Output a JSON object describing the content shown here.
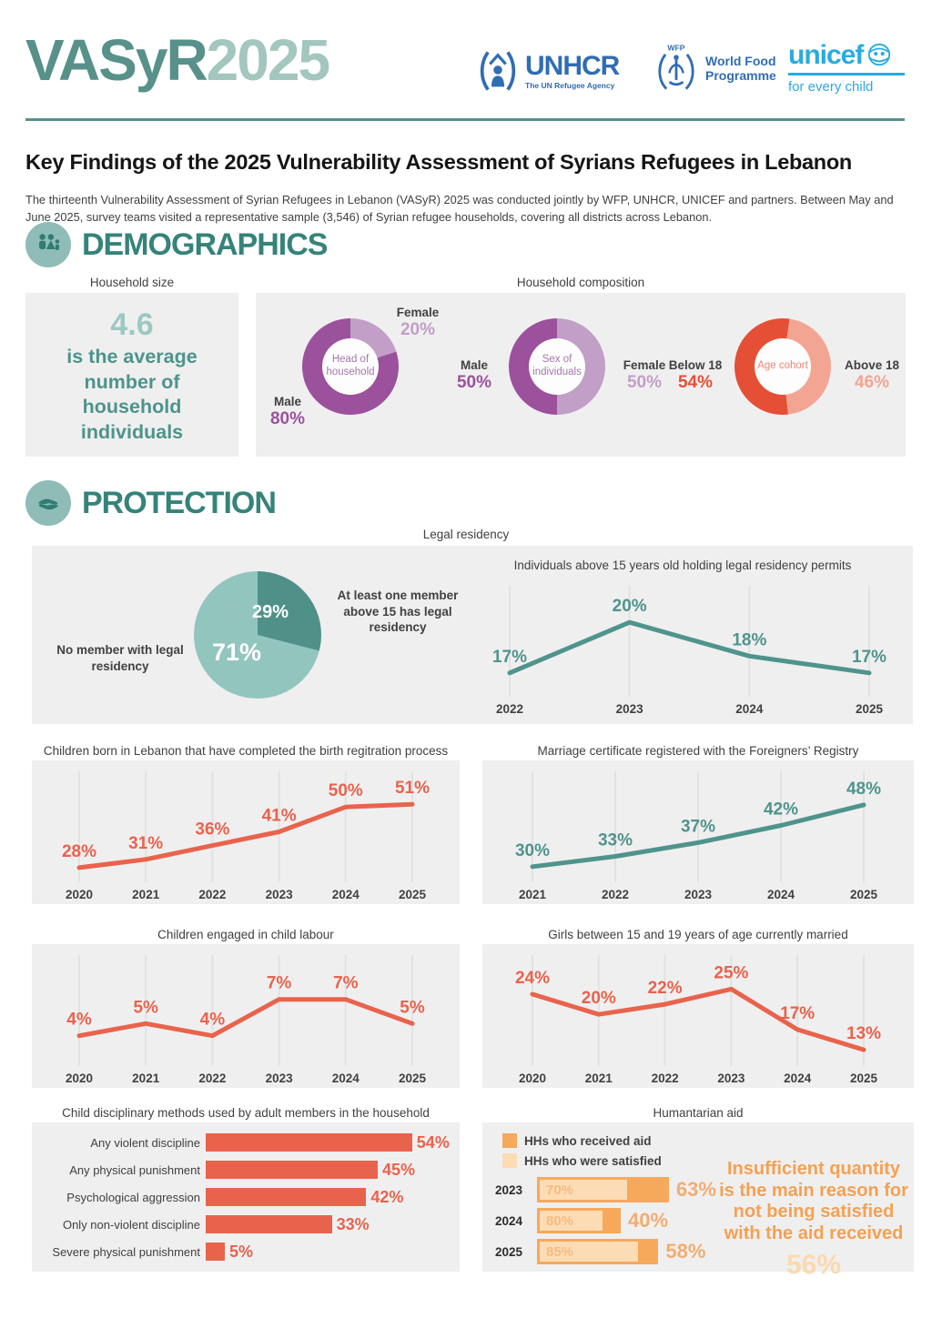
{
  "header": {
    "wordmark_primary": "VASyR",
    "wordmark_secondary": "2025",
    "logos": {
      "unhcr_name": "UNHCR",
      "unhcr_tagline": "The UN Refugee Agency",
      "wfp_acronym": "WFP",
      "wfp_name_line1": "World Food",
      "wfp_name_line2": "Programme",
      "unicef_name": "unicef",
      "unicef_tagline": "for every child"
    },
    "title": "Key Findings of the 2025 Vulnerability Assessment of Syrians Refugees in Lebanon",
    "intro": "The thirteenth Vulnerability Assessment of Syrian Refugees in Lebanon (VASyR) 2025 was conducted jointly by WFP, UNHCR, UNICEF and partners. Between May and June 2025, survey teams visited a representative sample (3,546) of Syrian refugee households, covering all districts across Lebanon."
  },
  "sections": {
    "demographics": "DEMOGRAPHICS",
    "protection": "PROTECTION"
  },
  "labels": {
    "household_size": "Household size",
    "household_composition": "Household composition",
    "legal_residency": "Legal residency"
  },
  "colors": {
    "teal_dark": "#35837a",
    "teal_mid": "#58908a",
    "teal_light": "#9cc8c1",
    "panel_grey": "#efeff0",
    "text_dark": "#414042",
    "unhcr_blue": "#2f6db5",
    "unicef_cyan": "#29abe2"
  },
  "chart_data": [
    {
      "id": "household_size",
      "type": "stat",
      "label": "Household size",
      "value": "4.6",
      "caption": "is the average number of household individuals"
    },
    {
      "id": "head_of_household",
      "type": "donut",
      "center_label": "Head of household",
      "slices": [
        {
          "label": "Male",
          "value": 80,
          "color": "#9c519c"
        },
        {
          "label": "Female",
          "value": 20,
          "color": "#c29fc7"
        }
      ]
    },
    {
      "id": "sex_of_individuals",
      "type": "donut",
      "center_label": "Sex of individuals",
      "slices": [
        {
          "label": "Male",
          "value": 50,
          "color": "#9c519c"
        },
        {
          "label": "Female",
          "value": 50,
          "color": "#c29fc7"
        }
      ]
    },
    {
      "id": "age_cohort",
      "type": "donut",
      "center_label": "Age cohort",
      "rotate": 8,
      "slices": [
        {
          "label": "Below 18",
          "value": 54,
          "color": "#e44f35"
        },
        {
          "label": "Above 18",
          "value": 46,
          "color": "#f3a593"
        }
      ]
    },
    {
      "id": "legal_residency_pie",
      "type": "pie",
      "title": "Legal residency",
      "slices": [
        {
          "label": "At least one member above 15 has legal residency",
          "value": 29,
          "color": "#4f9189"
        },
        {
          "label": "No member with legal residency",
          "value": 71,
          "color": "#93c5bf"
        }
      ]
    },
    {
      "id": "residency_permits",
      "type": "line",
      "title": "Individuals above 15 years old holding legal residency permits",
      "x": [
        "2022",
        "2023",
        "2024",
        "2025"
      ],
      "values": [
        17,
        20,
        18,
        17
      ],
      "ylim": [
        15.8,
        21.2
      ],
      "pad": [
        75,
        60
      ],
      "color": "#4f948c"
    },
    {
      "id": "birth_registration",
      "type": "line",
      "title": "Children born in Lebanon that have completed the birth regitration process",
      "x": [
        "2020",
        "2021",
        "2022",
        "2023",
        "2024",
        "2025"
      ],
      "values": [
        28,
        31,
        36,
        41,
        50,
        51
      ],
      "ylim": [
        24,
        57
      ],
      "pad": [
        52,
        52
      ],
      "color": "#e9634c"
    },
    {
      "id": "marriage_certificate",
      "type": "line",
      "title": "Marriage certificate registered with the Foreigners’ Registry",
      "x": [
        "2021",
        "2022",
        "2023",
        "2024",
        "2025"
      ],
      "values": [
        30,
        33,
        37,
        42,
        48
      ],
      "ylim": [
        26.5,
        53
      ],
      "pad": [
        55,
        55
      ],
      "color": "#4f948c"
    },
    {
      "id": "child_labour",
      "type": "line",
      "title": "Children engaged in child labour",
      "x": [
        "2020",
        "2021",
        "2022",
        "2023",
        "2024",
        "2025"
      ],
      "values": [
        4,
        5,
        4,
        7,
        7,
        5
      ],
      "ylim": [
        1.8,
        9.3
      ],
      "pad": [
        52,
        52
      ],
      "color": "#e9634c"
    },
    {
      "id": "girls_married",
      "type": "line",
      "title": "Girls between 15 and 19 years of age currently married",
      "x": [
        "2020",
        "2021",
        "2022",
        "2023",
        "2024",
        "2025"
      ],
      "values": [
        24,
        20,
        22,
        25,
        17,
        13
      ],
      "ylim": [
        10.5,
        28.5
      ],
      "pad": [
        55,
        55
      ],
      "color": "#e9634c"
    },
    {
      "id": "child_discipline",
      "type": "bar",
      "title": "Child disciplinary methods used by adult members in the household",
      "categories": [
        "Any violent discipline",
        "Any physical punishment",
        "Psychological aggression",
        "Only non-violent discipline",
        "Severe physical punishment"
      ],
      "values": [
        54,
        45,
        42,
        33,
        5
      ],
      "color": "#e9634c"
    },
    {
      "id": "humanitarian_aid",
      "type": "bar",
      "title": "Humantarian aid",
      "legend": [
        "HHs who received aid",
        "HHs who were satisfied"
      ],
      "years": [
        "2023",
        "2024",
        "2025"
      ],
      "series": [
        {
          "name": "HHs who received aid",
          "values": [
            63,
            40,
            58
          ]
        },
        {
          "name": "HHs who were satisfied",
          "values": [
            70,
            80,
            85
          ]
        }
      ],
      "colors": {
        "received": "#f6a85b",
        "satisfied": "#fcdcb4"
      },
      "note": "Insufficient quantity is the main reason for not being satisfied with the aid received",
      "note_value": 56
    }
  ]
}
